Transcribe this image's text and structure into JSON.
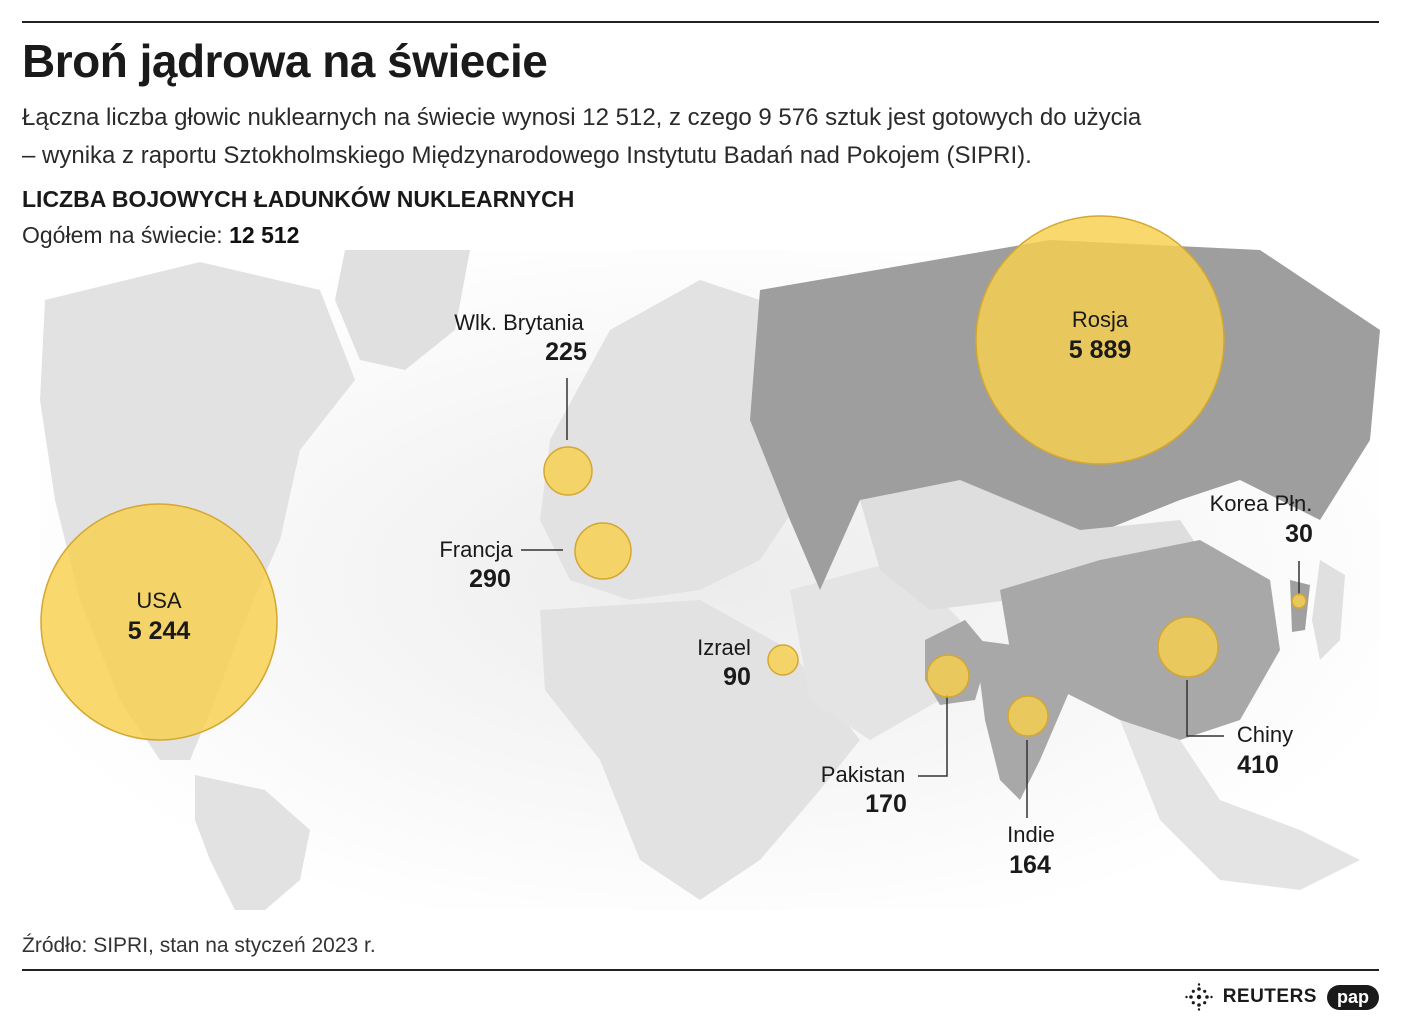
{
  "title": "Broń jądrowa na świecie",
  "subtitle_line1": "Łączna liczba głowic nuklearnych na świecie wynosi 12 512, z czego 9 576 sztuk jest gotowych do użycia",
  "subtitle_line2": "– wynika z raportu Sztokholmskiego Międzynarodowego Instytutu Badań nad Pokojem (SIPRI).",
  "section_heading": "LICZBA BOJOWYCH ŁADUNKÓW NUKLEARNYCH",
  "total_label": "Ogółem na świecie:",
  "total_value": "12 512",
  "source": "Źródło: SIPRI, stan na styczeń 2023 r.",
  "logos": {
    "reuters": "REUTERS",
    "pap": "pap"
  },
  "colors": {
    "bubble_fill": "#F8CF4E",
    "bubble_stroke": "#D4A731",
    "land_light": "#E4E4E4",
    "land_dark": "#9E9E9E",
    "text": "#1a1a1a"
  },
  "countries": [
    {
      "id": "usa",
      "name": "USA",
      "value": "5 244",
      "warheads": 5244
    },
    {
      "id": "russia",
      "name": "Rosja",
      "value": "5 889",
      "warheads": 5889
    },
    {
      "id": "uk",
      "name": "Wlk. Brytania",
      "value": "225",
      "warheads": 225
    },
    {
      "id": "france",
      "name": "Francja",
      "value": "290",
      "warheads": 290
    },
    {
      "id": "israel",
      "name": "Izrael",
      "value": "90",
      "warheads": 90
    },
    {
      "id": "pakistan",
      "name": "Pakistan",
      "value": "170",
      "warheads": 170
    },
    {
      "id": "india",
      "name": "Indie",
      "value": "164",
      "warheads": 164
    },
    {
      "id": "china",
      "name": "Chiny",
      "value": "410",
      "warheads": 410
    },
    {
      "id": "nkorea",
      "name": "Korea Płn.",
      "value": "30",
      "warheads": 30
    }
  ]
}
